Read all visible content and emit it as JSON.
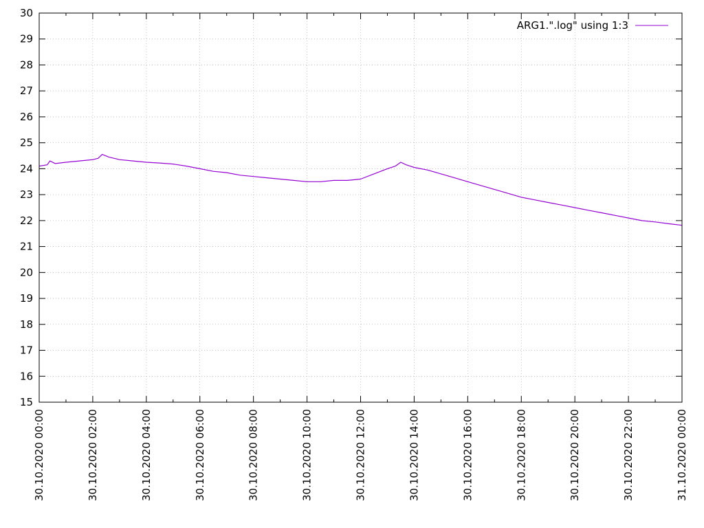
{
  "chart_data": {
    "type": "line",
    "title": "",
    "xlabel": "",
    "ylabel": "",
    "xlim": [
      0,
      24
    ],
    "ylim": [
      15,
      30
    ],
    "yticks": [
      15,
      16,
      17,
      18,
      19,
      20,
      21,
      22,
      23,
      24,
      25,
      26,
      27,
      28,
      29,
      30
    ],
    "xticks": [
      0,
      2,
      4,
      6,
      8,
      10,
      12,
      14,
      16,
      18,
      20,
      22,
      24
    ],
    "xtick_labels": [
      "30.10.2020 00:00",
      "30.10.2020 02:00",
      "30.10.2020 04:00",
      "30.10.2020 06:00",
      "30.10.2020 08:00",
      "30.10.2020 10:00",
      "30.10.2020 12:00",
      "30.10.2020 14:00",
      "30.10.2020 16:00",
      "30.10.2020 18:00",
      "30.10.2020 20:00",
      "30.10.2020 22:00",
      "31.10.2020 00:00"
    ],
    "grid": true,
    "legend_position": "top-right",
    "series": [
      {
        "name": "ARG1.\".log\" using 1:3",
        "color": "#9400d3",
        "x": [
          0.0,
          0.3,
          0.4,
          0.6,
          1.0,
          1.5,
          2.0,
          2.2,
          2.35,
          2.6,
          3.0,
          3.5,
          4.0,
          4.5,
          5.0,
          5.5,
          6.0,
          6.5,
          7.0,
          7.5,
          8.0,
          8.5,
          9.0,
          9.5,
          10.0,
          10.5,
          11.0,
          11.5,
          12.0,
          12.5,
          13.0,
          13.3,
          13.5,
          13.7,
          14.0,
          14.5,
          15.0,
          15.5,
          16.0,
          16.5,
          17.0,
          17.5,
          18.0,
          18.5,
          19.0,
          19.5,
          20.0,
          20.5,
          21.0,
          21.5,
          22.0,
          22.5,
          23.0,
          23.5,
          24.0
        ],
        "y": [
          24.1,
          24.15,
          24.3,
          24.2,
          24.25,
          24.3,
          24.35,
          24.4,
          24.55,
          24.45,
          24.35,
          24.3,
          24.25,
          24.22,
          24.18,
          24.1,
          24.0,
          23.9,
          23.85,
          23.75,
          23.7,
          23.65,
          23.6,
          23.55,
          23.5,
          23.5,
          23.55,
          23.55,
          23.6,
          23.8,
          24.0,
          24.1,
          24.25,
          24.15,
          24.05,
          23.95,
          23.8,
          23.65,
          23.5,
          23.35,
          23.2,
          23.05,
          22.9,
          22.8,
          22.7,
          22.6,
          22.5,
          22.4,
          22.3,
          22.2,
          22.1,
          22.0,
          21.95,
          21.88,
          21.82
        ]
      }
    ]
  }
}
